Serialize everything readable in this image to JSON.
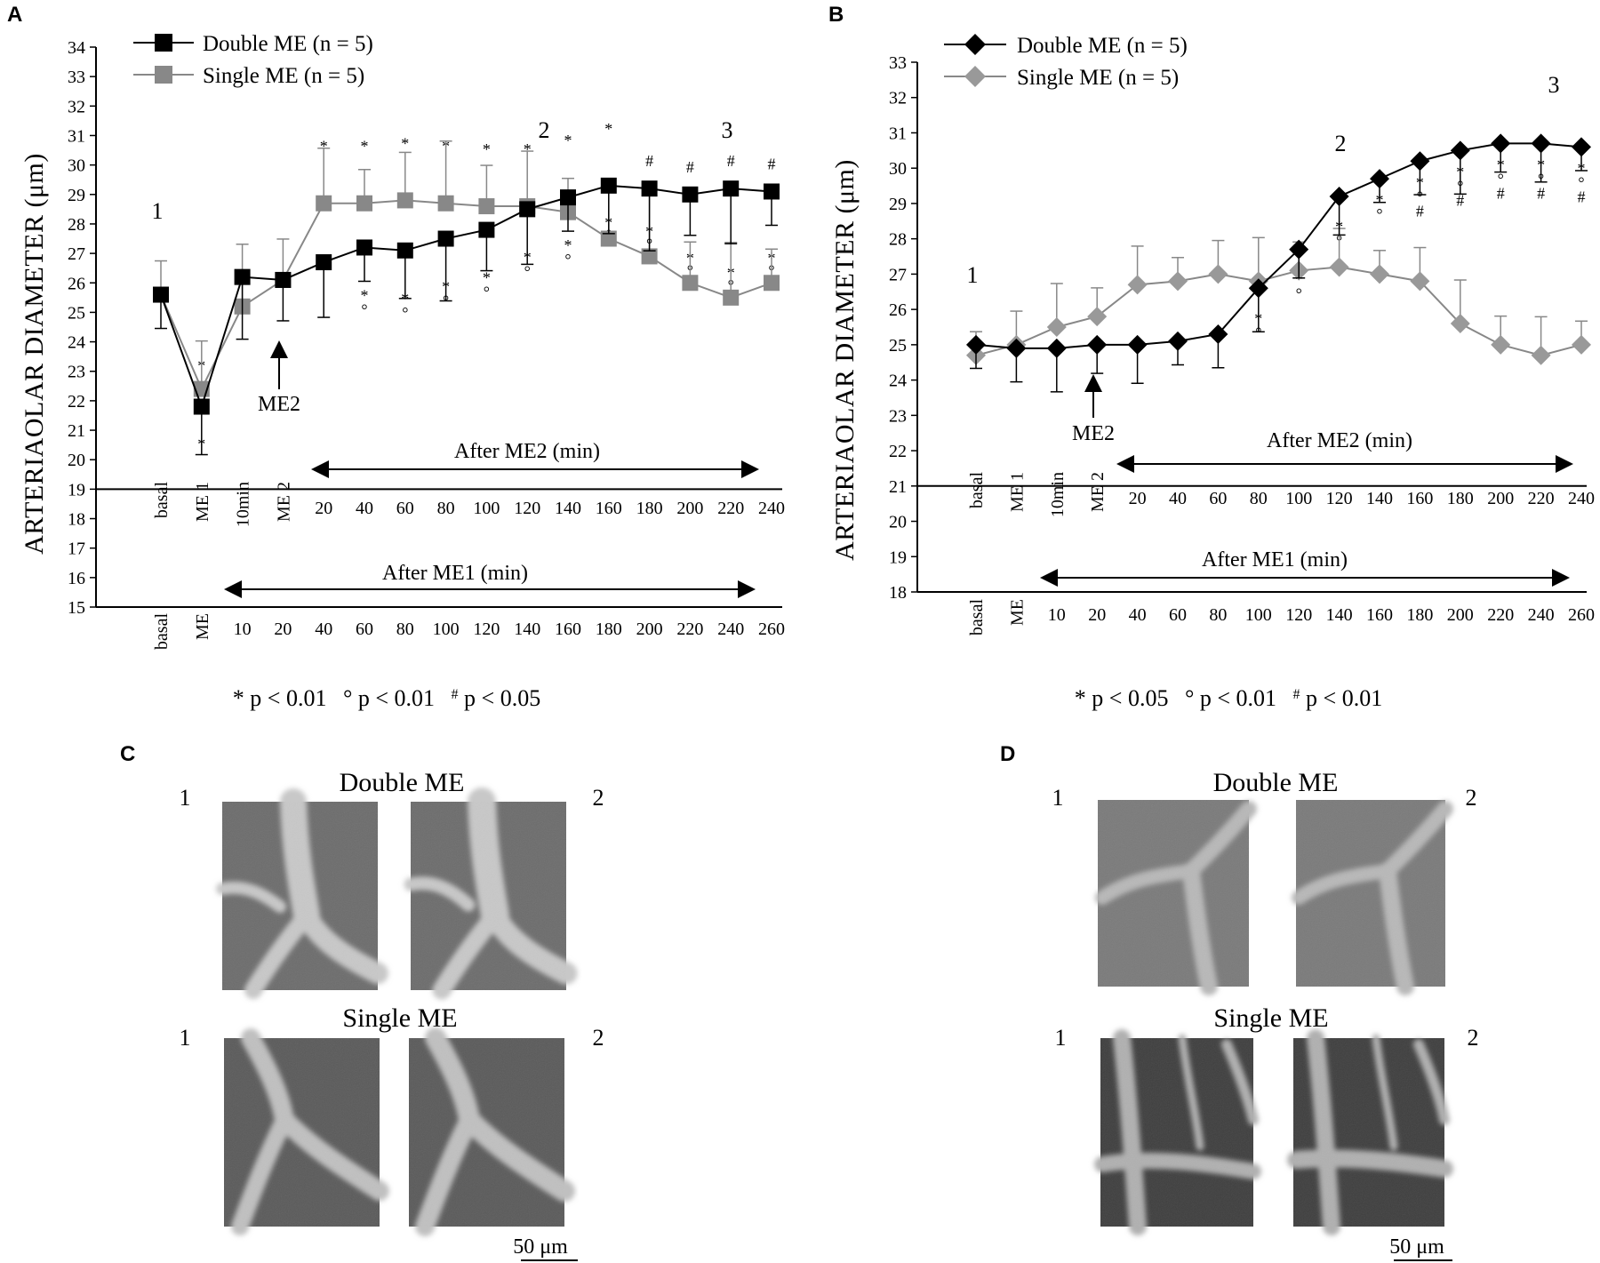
{
  "panels": {
    "A": "A",
    "B": "B",
    "C": "C",
    "D": "D"
  },
  "colors": {
    "double": "#000000",
    "single": "#888888",
    "axis": "#000000"
  },
  "chart_data": [
    {
      "id": "A",
      "type": "line",
      "marker": "square",
      "ylabel": "ARTERIAOLAR DIAMETER  (μm)",
      "ylim": [
        15,
        34
      ],
      "yticks": [
        15,
        16,
        17,
        18,
        19,
        20,
        21,
        22,
        23,
        24,
        25,
        26,
        27,
        28,
        29,
        30,
        31,
        32,
        33,
        34
      ],
      "upper_axis_y": 19,
      "positions": [
        0,
        1,
        2,
        3,
        4,
        5,
        6,
        7,
        8,
        9,
        10,
        11,
        12,
        13,
        14
      ],
      "upper_tick_labels": [
        "basal",
        "ME 1",
        "10min",
        "ME 2",
        "20",
        "40",
        "60",
        "80",
        "100",
        "120",
        "140",
        "160",
        "180",
        "200",
        "220",
        "240"
      ],
      "upper_tick_positions": [
        0,
        1,
        2,
        3,
        4,
        5,
        6,
        7,
        8,
        9,
        10,
        11,
        12,
        13,
        14,
        15
      ],
      "lower_tick_labels": [
        "basal",
        "ME",
        "10",
        "20",
        "40",
        "60",
        "80",
        "100",
        "120",
        "140",
        "160",
        "180",
        "200",
        "220",
        "240",
        "260"
      ],
      "upper_axis_caption": "After ME2 (min)",
      "lower_axis_caption": "After ME1 (min)",
      "arrow_label": "ME2",
      "point_labels": {
        "p1": "1",
        "p2": "2",
        "p3": "3"
      },
      "series": [
        {
          "name": "Double  ME  (n = 5)",
          "x": [
            0,
            1,
            2,
            3,
            4,
            5,
            6,
            7,
            8,
            9,
            10,
            11,
            12,
            13,
            14,
            15
          ],
          "values": [
            25.6,
            21.8,
            26.2,
            26.1,
            26.7,
            27.2,
            27.1,
            27.5,
            27.8,
            28.5,
            28.9,
            29.3,
            29.2,
            29.0,
            29.2,
            29.1
          ]
        },
        {
          "name": "Single  ME  (n = 5)",
          "x": [
            0,
            1,
            2,
            3,
            4,
            5,
            6,
            7,
            8,
            9,
            10,
            11,
            12,
            13,
            14,
            15
          ],
          "values": [
            25.6,
            22.4,
            25.2,
            26.1,
            28.7,
            28.7,
            28.8,
            28.7,
            28.6,
            28.6,
            28.4,
            27.5,
            26.9,
            26.0,
            25.5,
            26.0
          ]
        }
      ],
      "footnote": {
        "a_mark": "*",
        "a": " p < 0.01",
        "b_mark": "°",
        "b": " p < 0.01",
        "c_mark": "#",
        "c": " p < 0.05"
      },
      "annotations": {
        "s1": "*",
        "s2": "°",
        "s3": "#"
      }
    },
    {
      "id": "B",
      "type": "line",
      "marker": "diamond",
      "ylabel": "ARTERIAOLAR DIAMETER  (μm)",
      "ylim": [
        18,
        33
      ],
      "yticks": [
        18,
        19,
        20,
        21,
        22,
        23,
        24,
        25,
        26,
        27,
        28,
        29,
        30,
        31,
        32,
        33
      ],
      "upper_axis_y": 21,
      "upper_tick_labels": [
        "basal",
        "ME 1",
        "10min",
        "ME 2",
        "20",
        "40",
        "60",
        "80",
        "100",
        "120",
        "140",
        "160",
        "180",
        "200",
        "220",
        "240"
      ],
      "lower_tick_labels": [
        "basal",
        "ME",
        "10",
        "20",
        "40",
        "60",
        "80",
        "100",
        "120",
        "140",
        "160",
        "180",
        "200",
        "220",
        "240",
        "260"
      ],
      "upper_axis_caption": "After ME2 (min)",
      "lower_axis_caption": "After ME1 (min)",
      "arrow_label": "ME2",
      "point_labels": {
        "p1": "1",
        "p2": "2",
        "p3": "3"
      },
      "series": [
        {
          "name": "Double  ME  (n = 5)",
          "x": [
            0,
            1,
            2,
            3,
            4,
            5,
            6,
            7,
            8,
            9,
            10,
            11,
            12,
            13,
            14,
            15
          ],
          "values": [
            25.0,
            24.9,
            24.9,
            25.0,
            25.0,
            25.1,
            25.3,
            26.6,
            27.7,
            29.2,
            29.7,
            30.2,
            30.5,
            30.7,
            30.7,
            30.6
          ]
        },
        {
          "name": "Single  ME  (n = 5)",
          "x": [
            0,
            1,
            2,
            3,
            4,
            5,
            6,
            7,
            8,
            9,
            10,
            11,
            12,
            13,
            14,
            15
          ],
          "values": [
            24.7,
            25.0,
            25.5,
            25.8,
            26.7,
            26.8,
            27.0,
            26.8,
            27.1,
            27.2,
            27.0,
            26.8,
            25.6,
            25.0,
            24.7,
            25.0
          ]
        }
      ],
      "footnote": {
        "a_mark": "*",
        "a": " p < 0.05",
        "b_mark": "°",
        "b": " p < 0.01",
        "c_mark": "#",
        "c": " p < 0.01"
      }
    }
  ],
  "micrographs": {
    "C": {
      "double_title": "Double ME",
      "single_title": "Single ME",
      "left_num": "1",
      "right_num": "2",
      "scale": "50 μm"
    },
    "D": {
      "double_title": "Double ME",
      "single_title": "Single ME",
      "left_num": "1",
      "right_num": "2",
      "scale": "50 μm"
    }
  }
}
